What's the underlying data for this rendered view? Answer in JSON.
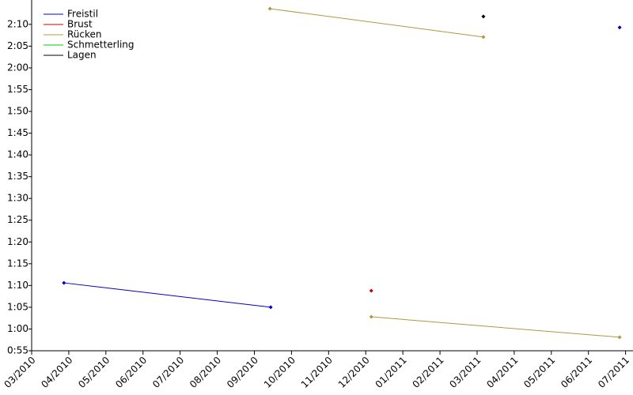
{
  "chart_data": {
    "type": "line",
    "xticks": [
      {
        "value": 0,
        "label": "03/2010"
      },
      {
        "value": 1,
        "label": "04/2010"
      },
      {
        "value": 2,
        "label": "05/2010"
      },
      {
        "value": 3,
        "label": "06/2010"
      },
      {
        "value": 4,
        "label": "07/2010"
      },
      {
        "value": 5,
        "label": "08/2010"
      },
      {
        "value": 6,
        "label": "09/2010"
      },
      {
        "value": 7,
        "label": "10/2010"
      },
      {
        "value": 8,
        "label": "11/2010"
      },
      {
        "value": 9,
        "label": "12/2010"
      },
      {
        "value": 10,
        "label": "01/2011"
      },
      {
        "value": 11,
        "label": "02/2011"
      },
      {
        "value": 12,
        "label": "03/2011"
      },
      {
        "value": 13,
        "label": "04/2011"
      },
      {
        "value": 14,
        "label": "05/2011"
      },
      {
        "value": 15,
        "label": "06/2011"
      },
      {
        "value": 16,
        "label": "07/2011"
      }
    ],
    "xlim": [
      0,
      16.2
    ],
    "ylim": [
      55,
      135.6
    ],
    "yticks": [
      {
        "value": 55,
        "label": "0:55"
      },
      {
        "value": 60,
        "label": "1:00"
      },
      {
        "value": 65,
        "label": "1:05"
      },
      {
        "value": 70,
        "label": "1:10"
      },
      {
        "value": 75,
        "label": "1:15"
      },
      {
        "value": 80,
        "label": "1:20"
      },
      {
        "value": 85,
        "label": "1:25"
      },
      {
        "value": 90,
        "label": "1:30"
      },
      {
        "value": 95,
        "label": "1:35"
      },
      {
        "value": 100,
        "label": "1:40"
      },
      {
        "value": 105,
        "label": "1:45"
      },
      {
        "value": 110,
        "label": "1:50"
      },
      {
        "value": 115,
        "label": "1:55"
      },
      {
        "value": 120,
        "label": "2:00"
      },
      {
        "value": 125,
        "label": "2:05"
      },
      {
        "value": 130,
        "label": "2:10"
      }
    ],
    "legend": "upper left",
    "series": [
      {
        "name": "Freistil",
        "color": "#0000cc",
        "x": [
          0.87,
          6.44,
          null,
          15.84
        ],
        "values": [
          70.6,
          65.0,
          null,
          129.3
        ]
      },
      {
        "name": "Brust",
        "color": "#cc0000",
        "x": [
          9.15
        ],
        "values": [
          68.8
        ]
      },
      {
        "name": "Rücken",
        "color": "#b09840",
        "x": [
          6.42,
          12.17,
          null,
          9.15,
          15.84
        ],
        "values": [
          133.6,
          127.1,
          null,
          62.8,
          58.1
        ]
      },
      {
        "name": "Schmetterling",
        "color": "#00cc00",
        "x": [],
        "values": []
      },
      {
        "name": "Lagen",
        "color": "#000000",
        "x": [
          12.17
        ],
        "values": [
          131.8
        ]
      }
    ]
  }
}
